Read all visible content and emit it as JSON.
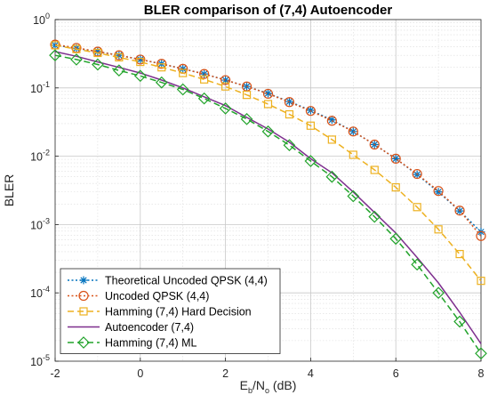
{
  "chart_data": {
    "type": "line",
    "title": "BLER comparison of (7,4) Autoencoder",
    "xlabel": {
      "main": "E",
      "sub1": "b",
      "mid": "/N",
      "sub2": "o",
      "tail": " (dB)"
    },
    "ylabel": "BLER",
    "xlim": [
      -2,
      8
    ],
    "ylim": [
      1e-05,
      1
    ],
    "yscale": "log",
    "grid": true,
    "minor_grid": true,
    "legend_position": "bottom-left",
    "x_ticks": [
      "-2",
      "0",
      "2",
      "4",
      "6",
      "8"
    ],
    "y_ticks": [
      {
        "base": "10",
        "exp": "0"
      },
      {
        "base": "10",
        "exp": "-1"
      },
      {
        "base": "10",
        "exp": "-2"
      },
      {
        "base": "10",
        "exp": "-3"
      },
      {
        "base": "10",
        "exp": "-4"
      },
      {
        "base": "10",
        "exp": "-5"
      }
    ],
    "x": [
      -2,
      -1.5,
      -1,
      -0.5,
      0,
      0.5,
      1,
      1.5,
      2,
      2.5,
      3,
      3.5,
      4,
      4.5,
      5,
      5.5,
      6,
      6.5,
      7,
      7.5,
      8
    ],
    "series": [
      {
        "name": "Theoretical Uncoded QPSK (4,4)",
        "color": "#0072BD",
        "line": "dotted",
        "marker": "asterisk",
        "values": [
          0.42,
          0.38,
          0.34,
          0.3,
          0.26,
          0.225,
          0.19,
          0.16,
          0.13,
          0.105,
          0.083,
          0.063,
          0.047,
          0.034,
          0.023,
          0.0148,
          0.0092,
          0.0054,
          0.003,
          0.00158,
          0.00078
        ]
      },
      {
        "name": "Uncoded QPSK (4,4)",
        "color": "#D95319",
        "line": "dotted",
        "marker": "circle",
        "values": [
          0.43,
          0.385,
          0.34,
          0.3,
          0.26,
          0.225,
          0.19,
          0.16,
          0.13,
          0.105,
          0.082,
          0.062,
          0.046,
          0.033,
          0.023,
          0.0148,
          0.0092,
          0.0055,
          0.0031,
          0.0016,
          0.00068
        ]
      },
      {
        "name": "Hamming (7,4) Hard Decision",
        "color": "#EDB120",
        "line": "dashed",
        "marker": "square",
        "values": [
          0.42,
          0.37,
          0.325,
          0.28,
          0.24,
          0.2,
          0.165,
          0.133,
          0.105,
          0.079,
          0.058,
          0.041,
          0.028,
          0.0175,
          0.0105,
          0.0063,
          0.0035,
          0.0018,
          0.00085,
          0.00037,
          0.00015
        ]
      },
      {
        "name": "Autoencoder (7,4)",
        "color": "#7E2F8E",
        "line": "solid",
        "marker": "none",
        "values": [
          0.34,
          0.29,
          0.24,
          0.2,
          0.165,
          0.13,
          0.1,
          0.074,
          0.055,
          0.037,
          0.025,
          0.016,
          0.0092,
          0.0057,
          0.003,
          0.0015,
          0.00075,
          0.00033,
          0.00014,
          5.2e-05,
          1.8e-05
        ]
      },
      {
        "name": "Hamming (7,4) ML",
        "color": "#22A32B",
        "line": "dashed",
        "marker": "diamond",
        "values": [
          0.3,
          0.26,
          0.22,
          0.18,
          0.15,
          0.12,
          0.095,
          0.07,
          0.05,
          0.035,
          0.023,
          0.0145,
          0.0085,
          0.005,
          0.0026,
          0.0013,
          0.00062,
          0.00026,
          0.0001,
          3.8e-05,
          1.3e-05
        ]
      }
    ]
  }
}
